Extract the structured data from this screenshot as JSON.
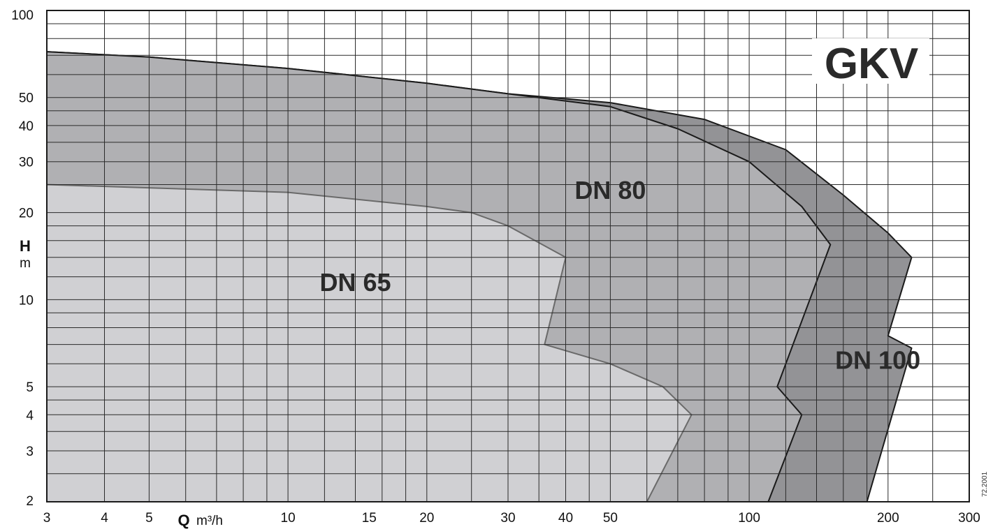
{
  "chart_data": {
    "type": "area",
    "title": "GKV",
    "xlabel": "Q",
    "xunit": "m³/h",
    "ylabel": "H",
    "yunit": "m",
    "xscale": "log",
    "yscale": "log",
    "xlim": [
      3,
      300
    ],
    "ylim": [
      2,
      100
    ],
    "x_ticks": [
      3,
      4,
      5,
      10,
      15,
      20,
      30,
      40,
      50,
      100,
      200,
      300
    ],
    "y_ticks": [
      2,
      3,
      4,
      5,
      10,
      20,
      30,
      40,
      50,
      100
    ],
    "x_grid": [
      3,
      4,
      5,
      6,
      7,
      8,
      9,
      10,
      12,
      14,
      16,
      18,
      20,
      25,
      30,
      35,
      40,
      45,
      50,
      60,
      70,
      80,
      90,
      100,
      120,
      140,
      160,
      180,
      200,
      250,
      300
    ],
    "y_grid": [
      2,
      2.5,
      3,
      3.5,
      4,
      4.5,
      5,
      6,
      7,
      8,
      9,
      10,
      12,
      14,
      16,
      18,
      20,
      25,
      30,
      35,
      40,
      45,
      50,
      60,
      70,
      80,
      90,
      100
    ],
    "grid": true,
    "legend": "none",
    "series": [
      {
        "name": "DN 100",
        "color": "#939396",
        "points": [
          [
            3,
            72
          ],
          [
            5,
            69
          ],
          [
            10,
            63
          ],
          [
            20,
            56
          ],
          [
            30,
            51.5
          ],
          [
            50,
            48
          ],
          [
            80,
            42
          ],
          [
            120,
            33
          ],
          [
            160,
            23
          ],
          [
            200,
            17
          ],
          [
            225,
            14
          ],
          [
            200,
            7.5
          ],
          [
            225,
            6.8
          ],
          [
            180,
            2
          ]
        ]
      },
      {
        "name": "DN 80",
        "color": "#b0b0b3",
        "points": [
          [
            3,
            72
          ],
          [
            5,
            69
          ],
          [
            10,
            63
          ],
          [
            20,
            56
          ],
          [
            30,
            51.5
          ],
          [
            50,
            46.5
          ],
          [
            70,
            39
          ],
          [
            100,
            30
          ],
          [
            130,
            21
          ],
          [
            150,
            15.5
          ],
          [
            115,
            5
          ],
          [
            130,
            4
          ],
          [
            110,
            2
          ]
        ]
      },
      {
        "name": "DN 65",
        "color": "#d0d0d3",
        "points": [
          [
            3,
            25
          ],
          [
            10,
            23.5
          ],
          [
            20,
            21
          ],
          [
            25,
            20
          ],
          [
            30,
            18
          ],
          [
            40,
            14
          ],
          [
            36,
            7
          ],
          [
            50,
            6
          ],
          [
            65,
            5
          ],
          [
            75,
            4
          ],
          [
            60,
            2
          ]
        ]
      }
    ],
    "annotations": [
      {
        "text": "DN 65",
        "x": 14,
        "y": 11.5
      },
      {
        "text": "DN 80",
        "x": 50,
        "y": 24
      },
      {
        "text": "DN 100",
        "x": 190,
        "y": 6.2
      }
    ],
    "code": "72.2001"
  }
}
